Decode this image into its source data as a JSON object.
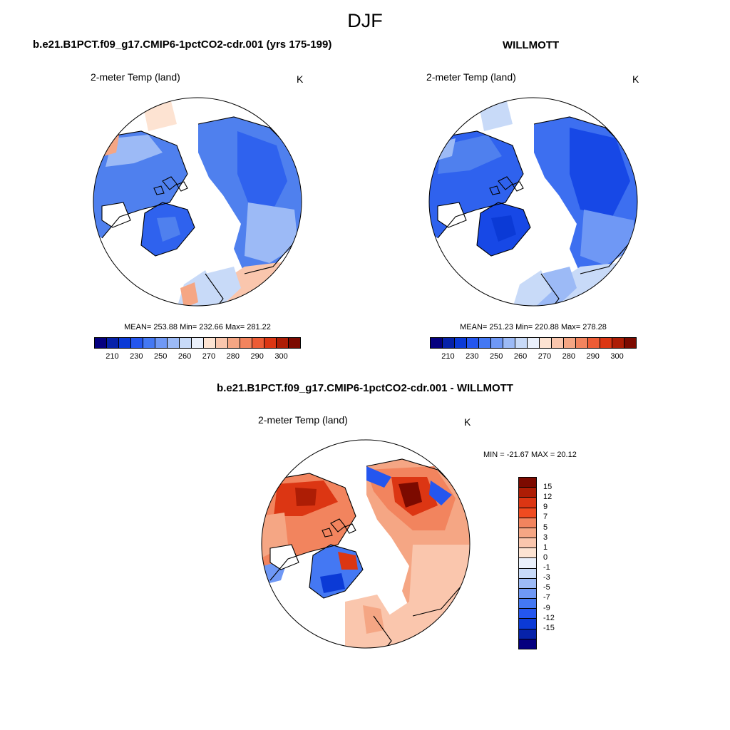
{
  "figure": {
    "title": "DJF",
    "colors": {
      "land_cold": "#3d6ff0",
      "land_warm": "#f08060",
      "ocean": "#ffffff",
      "coast": "#000000"
    }
  },
  "panels": [
    {
      "title": "b.e21.B1PCT.f09_g17.CMIP6-1pctCO2-cdr.001 (yrs 175-199)",
      "variable": "2-meter Temp (land)",
      "units": "K",
      "stats": "MEAN= 253.88  Min= 232.66  Max= 281.22",
      "map_type": "polar-stereographic-north",
      "mean": 253.88,
      "min": 232.66,
      "max": 281.22
    },
    {
      "title": "WILLMOTT",
      "variable": "2-meter Temp (land)",
      "units": "K",
      "stats": "MEAN= 251.23  Min= 220.88  Max= 278.28",
      "map_type": "polar-stereographic-north",
      "mean": 251.23,
      "min": 220.88,
      "max": 278.28
    }
  ],
  "colorbar_abs": {
    "tick_labels": [
      "210",
      "230",
      "250",
      "260",
      "270",
      "280",
      "290",
      "300"
    ],
    "colors": [
      "#05007f",
      "#0622a9",
      "#0b3ad6",
      "#2456ef",
      "#4478f3",
      "#6f98f5",
      "#9cbaf6",
      "#c8daf8",
      "#eaf0fb",
      "#fde3d2",
      "#fac6ad",
      "#f5a684",
      "#f2845e",
      "#ed5c35",
      "#dc3613",
      "#ad1d05",
      "#7c0a00"
    ]
  },
  "difference": {
    "title": "b.e21.B1PCT.f09_g17.CMIP6-1pctCO2-cdr.001 - WILLMOTT",
    "variable": "2-meter Temp (land)",
    "units": "K",
    "minmax": "MIN = -21.67 MAX =  20.12",
    "min": -21.67,
    "max": 20.12
  },
  "colorbar_diff": {
    "tick_labels": [
      "15",
      "12",
      "9",
      "7",
      "5",
      "3",
      "1",
      "0",
      "-1",
      "-3",
      "-5",
      "-7",
      "-9",
      "-12",
      "-15"
    ],
    "colors": [
      "#7c0a00",
      "#ad1d05",
      "#dc3613",
      "#f04b20",
      "#f2845e",
      "#f5a684",
      "#fac6ad",
      "#fde3d2",
      "#eaf0fb",
      "#c8daf8",
      "#9cbaf6",
      "#6f98f5",
      "#4478f3",
      "#2456ef",
      "#0b3ad6",
      "#0622a9",
      "#05007f"
    ]
  }
}
